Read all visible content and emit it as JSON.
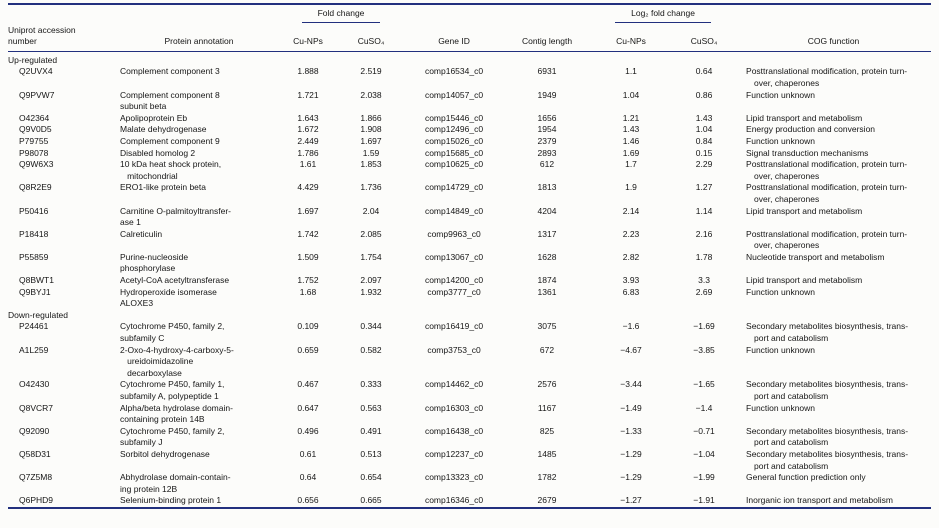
{
  "table": {
    "group_headers": {
      "fold_change": "Fold change",
      "log2_fold_change": "Log₂ fold change"
    },
    "columns": {
      "uniprot": "Uniprot accession\nnumber",
      "annotation": "Protein annotation",
      "fc_cunps": "Cu-NPs",
      "fc_cuso4": "CuSO₄",
      "gene_id": "Gene ID",
      "contig_length": "Contig length",
      "log2_cunps": "Cu-NPs",
      "log2_cuso4": "CuSO₄",
      "cog": "COG function"
    },
    "rule_color": "#22307e",
    "sections": [
      {
        "label": "Up-regulated",
        "rows": [
          {
            "uniprot": "Q2UVX4",
            "annotation": "Complement component 3",
            "fc_cunps": "1.888",
            "fc_cuso4": "2.519",
            "gene_id": "comp16534_c0",
            "contig_length": "6931",
            "log2_cunps": "1.1",
            "log2_cuso4": "0.64",
            "cog": "Posttranslational modification, protein turn-\nover, chaperones"
          },
          {
            "uniprot": "Q9PVW7",
            "annotation": "Complement component 8\nsubunit beta",
            "fc_cunps": "1.721",
            "fc_cuso4": "2.038",
            "gene_id": "comp14057_c0",
            "contig_length": "1949",
            "log2_cunps": "1.04",
            "log2_cuso4": "0.86",
            "cog": "Function unknown"
          },
          {
            "uniprot": "O42364",
            "annotation": "Apolipoprotein Eb",
            "fc_cunps": "1.643",
            "fc_cuso4": "1.866",
            "gene_id": "comp15446_c0",
            "contig_length": "1656",
            "log2_cunps": "1.21",
            "log2_cuso4": "1.43",
            "cog": "Lipid transport and metabolism"
          },
          {
            "uniprot": "Q9V0D5",
            "annotation": "Malate dehydrogenase",
            "fc_cunps": "1.672",
            "fc_cuso4": "1.908",
            "gene_id": "comp12496_c0",
            "contig_length": "1954",
            "log2_cunps": "1.43",
            "log2_cuso4": "1.04",
            "cog": "Energy production and conversion"
          },
          {
            "uniprot": "P79755",
            "annotation": "Complement component 9",
            "fc_cunps": "2.449",
            "fc_cuso4": "1.697",
            "gene_id": "comp15026_c0",
            "contig_length": "2379",
            "log2_cunps": "1.46",
            "log2_cuso4": "0.84",
            "cog": "Function unknown"
          },
          {
            "uniprot": "P98078",
            "annotation": "Disabled homolog 2",
            "fc_cunps": "1.786",
            "fc_cuso4": "1.59",
            "gene_id": "comp15685_c0",
            "contig_length": "2893",
            "log2_cunps": "1.69",
            "log2_cuso4": "0.15",
            "cog": "Signal transduction mechanisms"
          },
          {
            "uniprot": "Q9W6X3",
            "annotation": "10 kDa heat shock protein,\n   mitochondrial",
            "fc_cunps": "1.61",
            "fc_cuso4": "1.853",
            "gene_id": "comp10625_c0",
            "contig_length": "612",
            "log2_cunps": "1.7",
            "log2_cuso4": "2.29",
            "cog": "Posttranslational modification, protein turn-\nover, chaperones"
          },
          {
            "uniprot": "Q8R2E9",
            "annotation": "ERO1-like protein beta",
            "fc_cunps": "4.429",
            "fc_cuso4": "1.736",
            "gene_id": "comp14729_c0",
            "contig_length": "1813",
            "log2_cunps": "1.9",
            "log2_cuso4": "1.27",
            "cog": "Posttranslational modification, protein turn-\nover, chaperones"
          },
          {
            "uniprot": "P50416",
            "annotation": "Carnitine O-palmitoyltransfer-\nase 1",
            "fc_cunps": "1.697",
            "fc_cuso4": "2.04",
            "gene_id": "comp14849_c0",
            "contig_length": "4204",
            "log2_cunps": "2.14",
            "log2_cuso4": "1.14",
            "cog": "Lipid transport and metabolism"
          },
          {
            "uniprot": "P18418",
            "annotation": "Calreticulin",
            "fc_cunps": "1.742",
            "fc_cuso4": "2.085",
            "gene_id": "comp9963_c0",
            "contig_length": "1317",
            "log2_cunps": "2.23",
            "log2_cuso4": "2.16",
            "cog": "Posttranslational modification, protein turn-\nover, chaperones"
          },
          {
            "uniprot": "P55859",
            "annotation": "Purine-nucleoside\nphosphorylase",
            "fc_cunps": "1.509",
            "fc_cuso4": "1.754",
            "gene_id": "comp13067_c0",
            "contig_length": "1628",
            "log2_cunps": "2.82",
            "log2_cuso4": "1.78",
            "cog": "Nucleotide transport and metabolism"
          },
          {
            "uniprot": "Q8BWT1",
            "annotation": "Acetyl-CoA acetyltransferase",
            "fc_cunps": "1.752",
            "fc_cuso4": "2.097",
            "gene_id": "comp14200_c0",
            "contig_length": "1874",
            "log2_cunps": "3.93",
            "log2_cuso4": "3.3",
            "cog": "Lipid transport and metabolism"
          },
          {
            "uniprot": "Q9BYJ1",
            "annotation": "Hydroperoxide isomerase\nALOXE3",
            "fc_cunps": "1.68",
            "fc_cuso4": "1.932",
            "gene_id": "comp3777_c0",
            "contig_length": "1361",
            "log2_cunps": "6.83",
            "log2_cuso4": "2.69",
            "cog": "Function unknown"
          }
        ]
      },
      {
        "label": "Down-regulated",
        "rows": [
          {
            "uniprot": "P24461",
            "annotation": "Cytochrome P450, family 2,\nsubfamily C",
            "fc_cunps": "0.109",
            "fc_cuso4": "0.344",
            "gene_id": "comp16419_c0",
            "contig_length": "3075",
            "log2_cunps": "−1.6",
            "log2_cuso4": "−1.69",
            "cog": "Secondary metabolites biosynthesis, trans-\nport and catabolism"
          },
          {
            "uniprot": "A1L259",
            "annotation": "2-Oxo-4-hydroxy-4-carboxy-5-\n   ureidoimidazoline\n   decarboxylase",
            "fc_cunps": "0.659",
            "fc_cuso4": "0.582",
            "gene_id": "comp3753_c0",
            "contig_length": "672",
            "log2_cunps": "−4.67",
            "log2_cuso4": "−3.85",
            "cog": "Function unknown"
          },
          {
            "uniprot": "O42430",
            "annotation": "Cytochrome P450, family 1,\nsubfamily A, polypeptide 1",
            "fc_cunps": "0.467",
            "fc_cuso4": "0.333",
            "gene_id": "comp14462_c0",
            "contig_length": "2576",
            "log2_cunps": "−3.44",
            "log2_cuso4": "−1.65",
            "cog": "Secondary metabolites biosynthesis, trans-\nport and catabolism"
          },
          {
            "uniprot": "Q8VCR7",
            "annotation": "Alpha/beta hydrolase domain-\ncontaining protein 14B",
            "fc_cunps": "0.647",
            "fc_cuso4": "0.563",
            "gene_id": "comp16303_c0",
            "contig_length": "1167",
            "log2_cunps": "−1.49",
            "log2_cuso4": "−1.4",
            "cog": "Function unknown"
          },
          {
            "uniprot": "Q92090",
            "annotation": "Cytochrome P450, family 2,\nsubfamily J",
            "fc_cunps": "0.496",
            "fc_cuso4": "0.491",
            "gene_id": "comp16438_c0",
            "contig_length": "825",
            "log2_cunps": "−1.33",
            "log2_cuso4": "−0.71",
            "cog": "Secondary metabolites biosynthesis, trans-\nport and catabolism"
          },
          {
            "uniprot": "Q58D31",
            "annotation": "Sorbitol dehydrogenase",
            "fc_cunps": "0.61",
            "fc_cuso4": "0.513",
            "gene_id": "comp12237_c0",
            "contig_length": "1485",
            "log2_cunps": "−1.29",
            "log2_cuso4": "−1.04",
            "cog": "Secondary metabolites biosynthesis, trans-\nport and catabolism"
          },
          {
            "uniprot": "Q7Z5M8",
            "annotation": "Abhydrolase domain-contain-\ning protein 12B",
            "fc_cunps": "0.64",
            "fc_cuso4": "0.654",
            "gene_id": "comp13323_c0",
            "contig_length": "1782",
            "log2_cunps": "−1.29",
            "log2_cuso4": "−1.99",
            "cog": "General function prediction only"
          },
          {
            "uniprot": "Q6PHD9",
            "annotation": "Selenium-binding protein 1",
            "fc_cunps": "0.656",
            "fc_cuso4": "0.665",
            "gene_id": "comp16346_c0",
            "contig_length": "2679",
            "log2_cunps": "−1.27",
            "log2_cuso4": "−1.91",
            "cog": "Inorganic ion transport and metabolism"
          }
        ]
      }
    ]
  }
}
